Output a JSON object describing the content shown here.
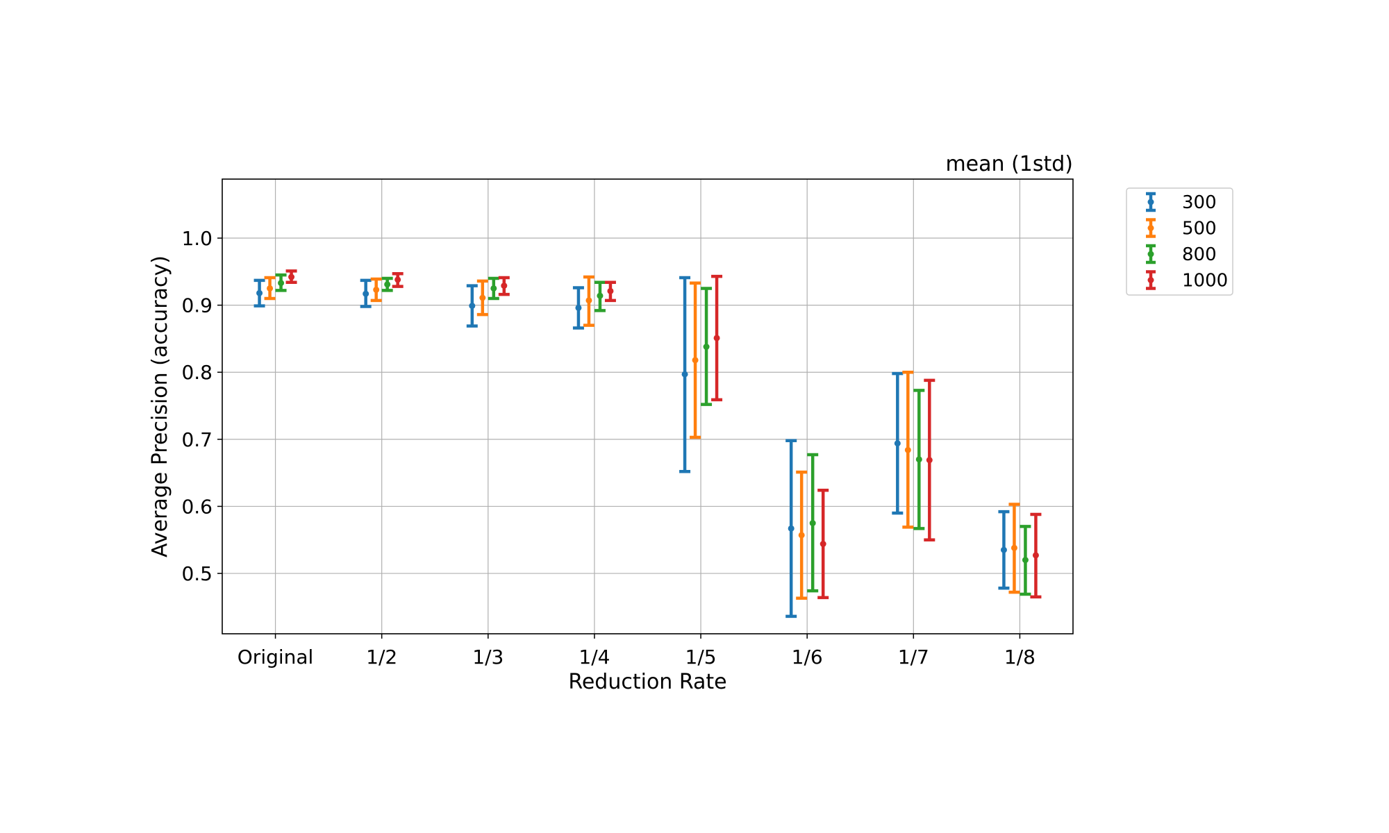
{
  "chart_data": {
    "type": "errorbar",
    "title": "mean (1std)",
    "xlabel": "Reduction Rate",
    "ylabel": "Average Precision (accuracy)",
    "categories": [
      "Original",
      "1/2",
      "1/3",
      "1/4",
      "1/5",
      "1/6",
      "1/7",
      "1/8"
    ],
    "ylim": [
      0.41,
      1.088
    ],
    "yticks": [
      "0.5",
      "0.6",
      "0.7",
      "0.8",
      "0.9",
      "1.0"
    ],
    "grid": true,
    "legend_position": "outside-top-right",
    "series": [
      {
        "name": "300",
        "color": "#1f77b4",
        "mean": [
          0.918,
          0.917,
          0.899,
          0.896,
          0.797,
          0.567,
          0.694,
          0.535
        ],
        "lower": [
          0.899,
          0.898,
          0.869,
          0.866,
          0.652,
          0.436,
          0.59,
          0.478
        ],
        "upper": [
          0.937,
          0.937,
          0.929,
          0.926,
          0.941,
          0.698,
          0.798,
          0.592
        ]
      },
      {
        "name": "500",
        "color": "#ff7f0e",
        "mean": [
          0.925,
          0.923,
          0.911,
          0.907,
          0.818,
          0.557,
          0.684,
          0.538
        ],
        "lower": [
          0.91,
          0.907,
          0.886,
          0.87,
          0.703,
          0.463,
          0.569,
          0.472
        ],
        "upper": [
          0.941,
          0.939,
          0.936,
          0.942,
          0.933,
          0.651,
          0.8,
          0.603
        ]
      },
      {
        "name": "800",
        "color": "#2ca02c",
        "mean": [
          0.933,
          0.931,
          0.925,
          0.914,
          0.838,
          0.575,
          0.67,
          0.52
        ],
        "lower": [
          0.922,
          0.922,
          0.91,
          0.892,
          0.752,
          0.474,
          0.567,
          0.469
        ],
        "upper": [
          0.945,
          0.94,
          0.94,
          0.934,
          0.925,
          0.677,
          0.773,
          0.57
        ]
      },
      {
        "name": "1000",
        "color": "#d62728",
        "mean": [
          0.942,
          0.938,
          0.929,
          0.921,
          0.851,
          0.544,
          0.669,
          0.527
        ],
        "lower": [
          0.934,
          0.928,
          0.916,
          0.907,
          0.759,
          0.464,
          0.55,
          0.465
        ],
        "upper": [
          0.951,
          0.947,
          0.941,
          0.934,
          0.943,
          0.624,
          0.788,
          0.588
        ]
      }
    ]
  }
}
